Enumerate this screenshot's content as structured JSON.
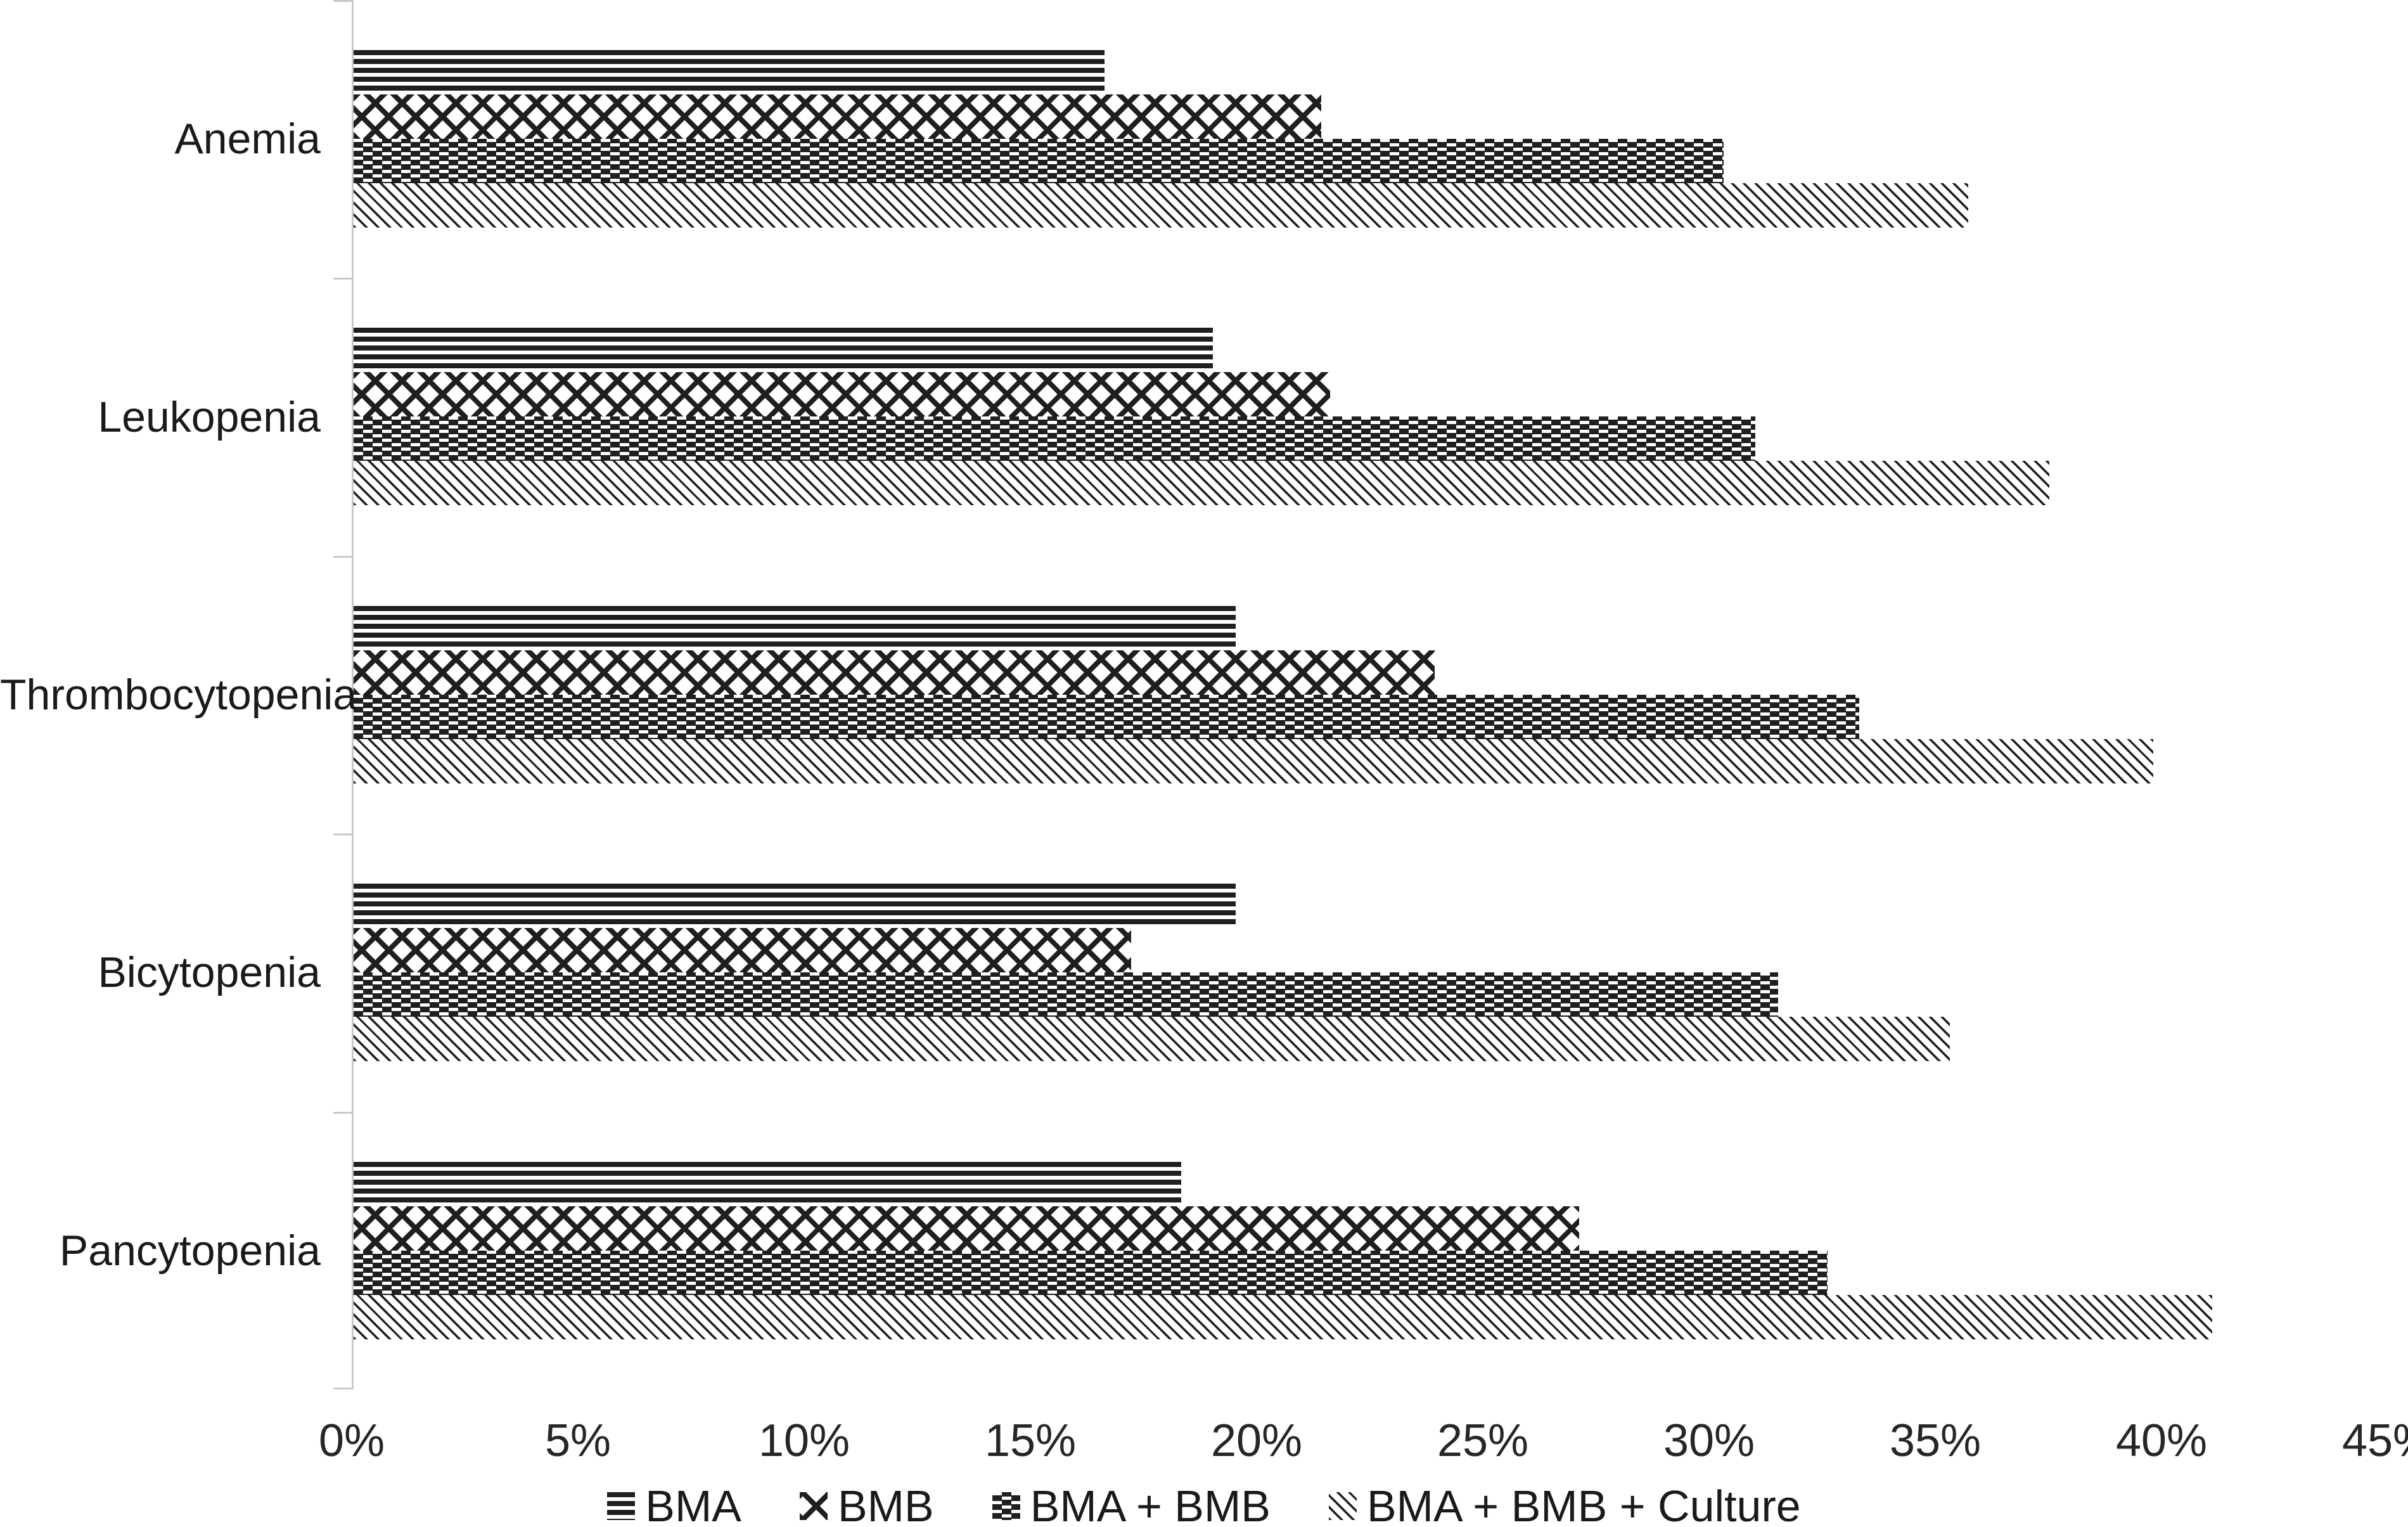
{
  "chart_data": {
    "type": "bar",
    "orientation": "horizontal",
    "title": "",
    "xlabel": "",
    "ylabel": "",
    "xlim": [
      0,
      45
    ],
    "x_tick_labels": [
      "0%",
      "5%",
      "10%",
      "15%",
      "20%",
      "25%",
      "30%",
      "35%",
      "40%",
      "45%"
    ],
    "grid": false,
    "legend_position": "bottom-center",
    "categories": [
      "Anemia",
      "Leukopenia",
      "Thrombocytopenia",
      "Bicytopenia",
      "Pancytopenia"
    ],
    "series": [
      {
        "name": "BMA",
        "pattern": "horizontal-stripes",
        "values": [
          16.6,
          19.0,
          19.5,
          19.5,
          18.3
        ]
      },
      {
        "name": "BMB",
        "pattern": "diagonal-weave",
        "values": [
          21.4,
          21.6,
          23.9,
          17.2,
          27.1
        ]
      },
      {
        "name": "BMA + BMB",
        "pattern": "dense-weave",
        "values": [
          30.3,
          31.0,
          33.3,
          31.5,
          32.6
        ]
      },
      {
        "name": "BMA + BMB + Culture",
        "pattern": "light-diagonal",
        "values": [
          35.7,
          37.5,
          39.8,
          35.3,
          41.1
        ]
      }
    ]
  },
  "legend": {
    "items": [
      "BMA",
      "BMB",
      "BMA + BMB",
      "BMA + BMB + Culture"
    ]
  },
  "colors": {
    "ink": "#1f1f1f",
    "axis_line": "#c9c9c9",
    "category_text": "#1a1a1a",
    "tick_text": "#262626",
    "background": "#ffffff"
  }
}
